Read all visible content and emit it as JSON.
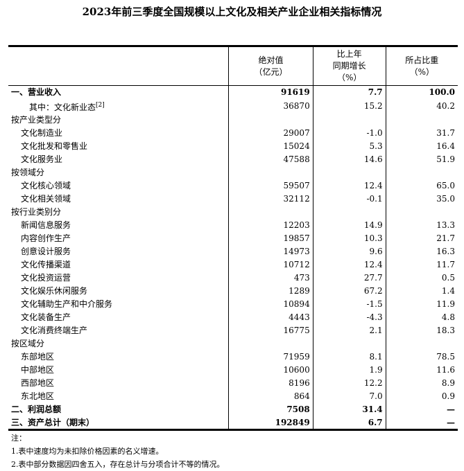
{
  "title": "2023年前三季度全国规模以上文化及相关产业企业相关指标情况",
  "headers": [
    {
      "l1": "",
      "l2": "",
      "l3": ""
    },
    {
      "l1": "绝对值",
      "l2": "（亿元）",
      "l3": ""
    },
    {
      "l1": "比上年",
      "l2": "同期增长",
      "l3": "（%）"
    },
    {
      "l1": "所占比重",
      "l2": "（%）",
      "l3": ""
    }
  ],
  "rows": [
    {
      "label": "一、营业收入",
      "value": "91619",
      "growth": "7.7",
      "share": "100.0",
      "style": "b",
      "level": 0
    },
    {
      "label": "其中：文化新业态",
      "sup": "[2]",
      "value": "36870",
      "growth": "15.2",
      "share": "40.2",
      "level": 2
    },
    {
      "label": "按产业类型分",
      "value": "",
      "growth": "",
      "share": "",
      "level": 0
    },
    {
      "label": "文化制造业",
      "value": "29007",
      "growth": "-1.0",
      "share": "31.7",
      "level": 1
    },
    {
      "label": "文化批发和零售业",
      "value": "15024",
      "growth": "5.3",
      "share": "16.4",
      "level": 1
    },
    {
      "label": "文化服务业",
      "value": "47588",
      "growth": "14.6",
      "share": "51.9",
      "level": 1
    },
    {
      "label": "按领域分",
      "value": "",
      "growth": "",
      "share": "",
      "level": 0
    },
    {
      "label": "文化核心领域",
      "value": "59507",
      "growth": "12.4",
      "share": "65.0",
      "level": 1
    },
    {
      "label": "文化相关领域",
      "value": "32112",
      "growth": "-0.1",
      "share": "35.0",
      "level": 1
    },
    {
      "label": "按行业类别分",
      "value": "",
      "growth": "",
      "share": "",
      "level": 0
    },
    {
      "label": "新闻信息服务",
      "value": "12203",
      "growth": "14.9",
      "share": "13.3",
      "level": 1
    },
    {
      "label": "内容创作生产",
      "value": "19857",
      "growth": "10.3",
      "share": "21.7",
      "level": 1
    },
    {
      "label": "创意设计服务",
      "value": "14973",
      "growth": "9.6",
      "share": "16.3",
      "level": 1
    },
    {
      "label": "文化传播渠道",
      "value": "10712",
      "growth": "12.4",
      "share": "11.7",
      "level": 1
    },
    {
      "label": "文化投资运营",
      "value": "473",
      "growth": "27.7",
      "share": "0.5",
      "level": 1
    },
    {
      "label": "文化娱乐休闲服务",
      "value": "1289",
      "growth": "67.2",
      "share": "1.4",
      "level": 1
    },
    {
      "label": "文化辅助生产和中介服务",
      "value": "10894",
      "growth": "-1.5",
      "share": "11.9",
      "level": 1
    },
    {
      "label": "文化装备生产",
      "value": "4443",
      "growth": "-4.3",
      "share": "4.8",
      "level": 1
    },
    {
      "label": "文化消费终端生产",
      "value": "16775",
      "growth": "2.1",
      "share": "18.3",
      "level": 1
    },
    {
      "label": "按区域分",
      "value": "",
      "growth": "",
      "share": "",
      "level": 0
    },
    {
      "label": "东部地区",
      "value": "71959",
      "growth": "8.1",
      "share": "78.5",
      "level": 1
    },
    {
      "label": "中部地区",
      "value": "10600",
      "growth": "1.9",
      "share": "11.6",
      "level": 1
    },
    {
      "label": "西部地区",
      "value": "8196",
      "growth": "12.2",
      "share": "8.9",
      "level": 1
    },
    {
      "label": "东北地区",
      "value": "864",
      "growth": "7.0",
      "share": "0.9",
      "level": 1
    },
    {
      "label": "二、利润总额",
      "value": "7508",
      "growth": "31.4",
      "share": "—",
      "style": "b",
      "level": 0
    },
    {
      "label": "三、资产总计（期末）",
      "value": "192849",
      "growth": "6.7",
      "share": "—",
      "style": "b",
      "level": 0
    }
  ],
  "notes": [
    "注：",
    "1.表中速度均为未扣除价格因素的名义增速。",
    "2.表中部分数据因四舍五入，存在总计与分项合计不等的情况。"
  ]
}
